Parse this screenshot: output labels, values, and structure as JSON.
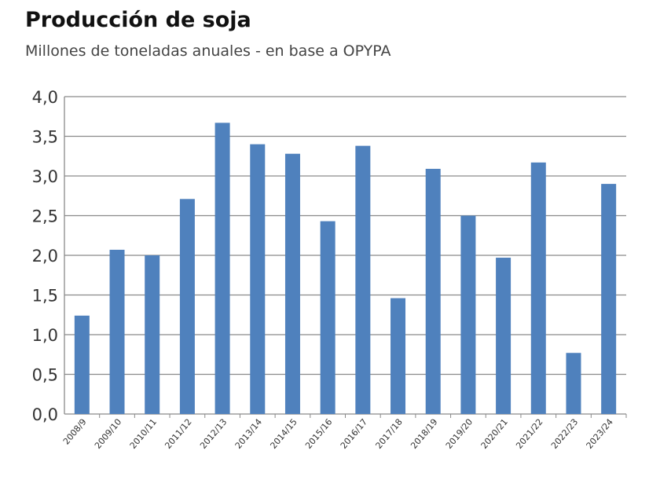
{
  "chart_data": {
    "type": "bar",
    "title": "Producción de soja",
    "subtitle": "Millones de toneladas anuales - en base a OPYPA",
    "xlabel": "",
    "ylabel": "",
    "ylim": [
      0,
      4
    ],
    "yticks": [
      "0,0",
      "0,5",
      "1,0",
      "1,5",
      "2,0",
      "2,5",
      "3,0",
      "3,5",
      "4,0"
    ],
    "grid": true,
    "color": "#4f81bd",
    "categories": [
      "2008/9",
      "2009/10",
      "2010/11",
      "2011/12",
      "2012/13",
      "2013/14",
      "2014/15",
      "2015/16",
      "2016/17",
      "2017/18",
      "2018/19",
      "2019/20",
      "2020/21",
      "2021/22",
      "2022/23",
      "2023/24"
    ],
    "values": [
      1.24,
      2.07,
      2.0,
      2.71,
      3.67,
      3.4,
      3.28,
      2.43,
      3.38,
      1.46,
      3.09,
      2.5,
      1.97,
      3.17,
      0.77,
      2.9
    ]
  }
}
